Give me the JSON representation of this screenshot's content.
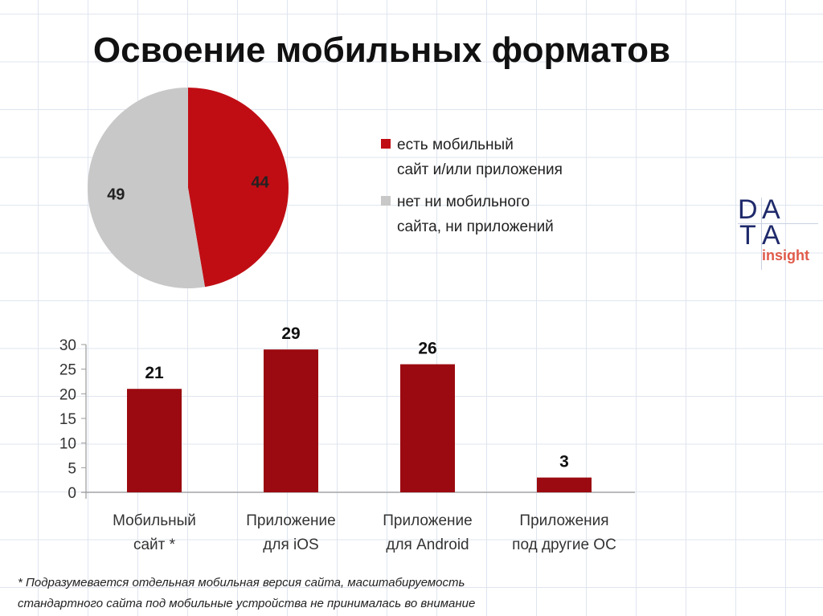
{
  "title": "Освоение мобильных форматов",
  "logo": {
    "line1": "DATA",
    "line2": "insight"
  },
  "footnote": [
    "* Подразумевается отдельная мобильная версия сайта, масштабируемость",
    "стандартного сайта под мобильные устройства не принималась во внимание"
  ],
  "chart_data": [
    {
      "type": "pie",
      "slices": [
        {
          "label": "есть мобильный сайт и/или приложения",
          "label_lines": [
            "есть мобильный",
            "сайт и/или приложения"
          ],
          "value": 44,
          "color": "#c00d14"
        },
        {
          "label": "нет ни мобильного сайта, ни приложений",
          "label_lines": [
            "нет ни мобильного",
            "сайта, ни приложений"
          ],
          "value": 49,
          "color": "#c8c8c8"
        }
      ],
      "legend_position": "right"
    },
    {
      "type": "bar",
      "categories": [
        [
          "Мобильный",
          "сайт *"
        ],
        [
          "Приложение",
          "для iOS"
        ],
        [
          "Приложение",
          "для Android"
        ],
        [
          "Приложения",
          "под другие ОС"
        ]
      ],
      "values": [
        21,
        29,
        26,
        3
      ],
      "ylim": [
        0,
        30
      ],
      "yticks": [
        "0",
        "5",
        "10",
        "15",
        "20",
        "25",
        "30"
      ],
      "color": "#9b0a10",
      "grid": false
    }
  ]
}
